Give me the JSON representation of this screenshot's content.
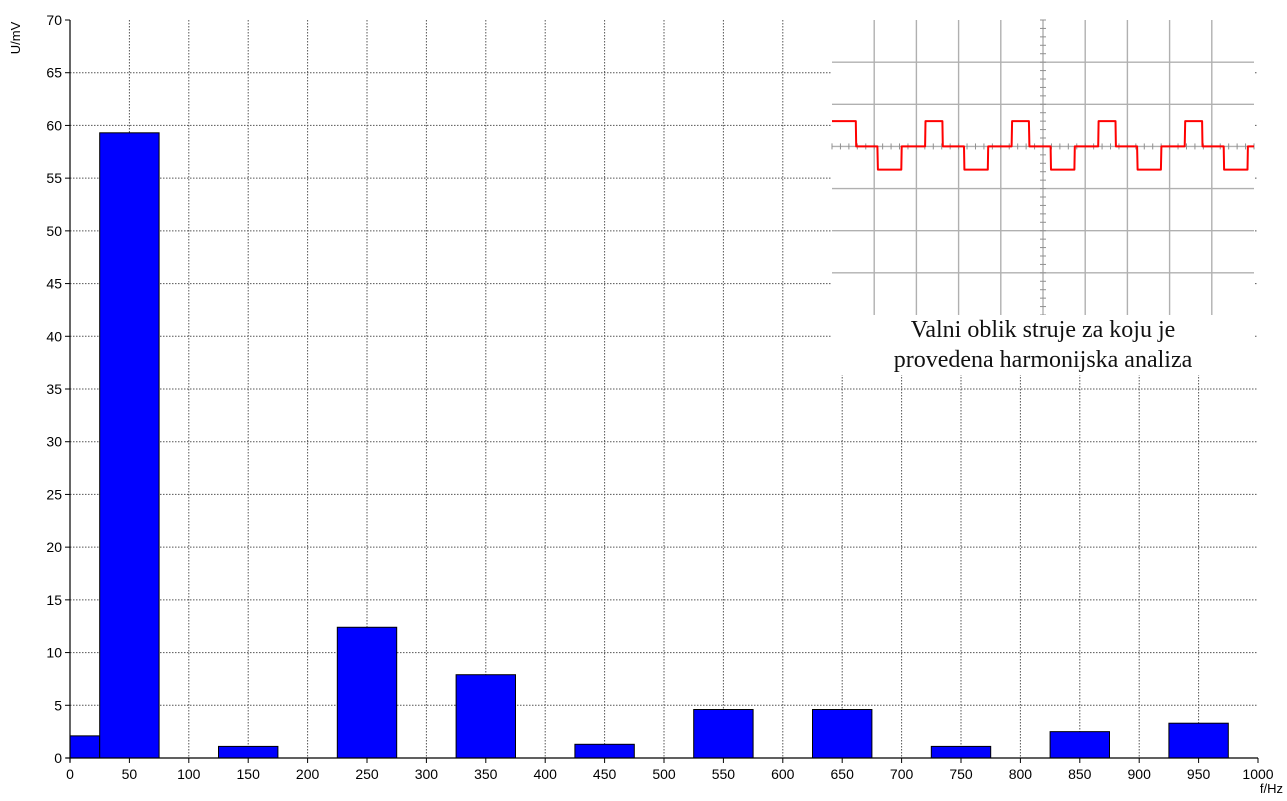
{
  "chart_data": [
    {
      "type": "bar",
      "title": "",
      "xlabel": "f/Hz",
      "ylabel": "U/mV",
      "xlim": [
        0,
        1000
      ],
      "ylim": [
        0,
        70
      ],
      "x_ticks": [
        0,
        50,
        100,
        150,
        200,
        250,
        300,
        350,
        400,
        450,
        500,
        550,
        600,
        650,
        700,
        750,
        800,
        850,
        900,
        950,
        1000
      ],
      "y_ticks": [
        0,
        5,
        10,
        15,
        20,
        25,
        30,
        35,
        40,
        45,
        50,
        55,
        60,
        65,
        70
      ],
      "grid": true,
      "bar_color": "#0000ff",
      "bars": [
        {
          "from": 0,
          "to": 25,
          "value": 2.1
        },
        {
          "from": 25,
          "to": 75,
          "value": 59.3
        },
        {
          "from": 125,
          "to": 175,
          "value": 1.1
        },
        {
          "from": 225,
          "to": 275,
          "value": 12.4
        },
        {
          "from": 325,
          "to": 375,
          "value": 7.9
        },
        {
          "from": 425,
          "to": 475,
          "value": 1.3
        },
        {
          "from": 525,
          "to": 575,
          "value": 4.6
        },
        {
          "from": 625,
          "to": 675,
          "value": 4.6
        },
        {
          "from": 725,
          "to": 775,
          "value": 1.1
        },
        {
          "from": 825,
          "to": 875,
          "value": 2.5
        },
        {
          "from": 925,
          "to": 975,
          "value": 3.3
        }
      ]
    },
    {
      "type": "line",
      "title": "",
      "caption_lines": [
        "Valni oblik struje za koju je",
        "provedena harmonijska analiza"
      ],
      "grid": true,
      "line_color": "#ff0000",
      "x": [
        0,
        0.55,
        0.56,
        1.05,
        1.06,
        1.6,
        1.61,
        2.15,
        2.16,
        2.55,
        2.56,
        3.05,
        3.06,
        3.6,
        3.61,
        4.15,
        4.16,
        4.55,
        4.56,
        5.05,
        5.06,
        5.6,
        5.61,
        6.15,
        6.16,
        6.55,
        6.56,
        7.05,
        7.06,
        7.6,
        7.61,
        8.15,
        8.16,
        8.55,
        8.56,
        9.05,
        9.06,
        9.6,
        9.61,
        9.75
      ],
      "y": [
        0.6,
        0.6,
        0,
        0,
        -0.55,
        -0.55,
        0,
        0,
        0.6,
        0.6,
        0,
        0,
        -0.55,
        -0.55,
        0,
        0,
        0.6,
        0.6,
        0,
        0,
        -0.55,
        -0.55,
        0,
        0,
        0.6,
        0.6,
        0,
        0,
        -0.55,
        -0.55,
        0,
        0,
        0.6,
        0.6,
        0,
        0,
        -0.55,
        -0.55,
        0,
        0
      ],
      "xlim": [
        0,
        9.75
      ],
      "ylim": [
        -2,
        2
      ]
    }
  ]
}
